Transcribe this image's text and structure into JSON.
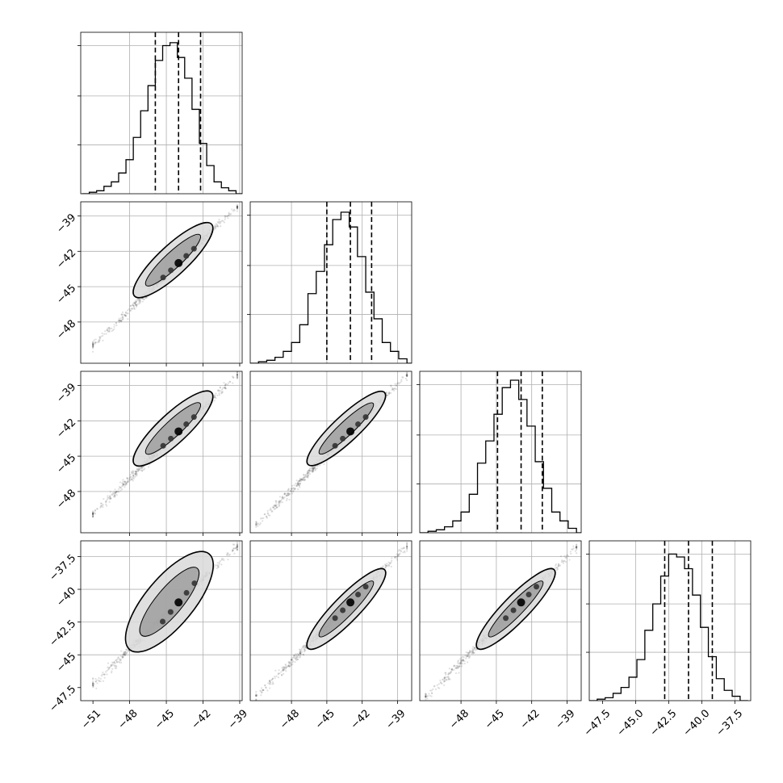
{
  "figure": {
    "kind": "corner plot"
  },
  "colors": {
    "line": "#000000",
    "grid": "#b0b0b0",
    "spine": "#000000",
    "scatter": "#000000"
  },
  "chart_data": [
    {
      "type": "histogram",
      "panel": "hist-0",
      "xlim": [
        -52,
        -38.8
      ],
      "ylim": [
        0,
        1.09
      ],
      "bins": [
        -51.9,
        -51.3,
        -50.7,
        -50.1,
        -49.5,
        -48.9,
        -48.3,
        -47.7,
        -47.1,
        -46.5,
        -45.9,
        -45.3,
        -44.7,
        -44.1,
        -43.5,
        -42.9,
        -42.3,
        -41.7,
        -41.1,
        -40.5,
        -39.9,
        -39.3,
        -38.7
      ],
      "counts": [
        0.0,
        0.01,
        0.02,
        0.05,
        0.08,
        0.14,
        0.23,
        0.38,
        0.56,
        0.73,
        0.9,
        1.0,
        1.02,
        0.92,
        0.78,
        0.57,
        0.34,
        0.19,
        0.08,
        0.04,
        0.02,
        0.0
      ],
      "quantiles": [
        -45.9,
        -44.0,
        -42.2
      ],
      "gridlines": [
        -48,
        -45,
        -42,
        -39
      ],
      "xticks": [
        -51,
        -48,
        -45,
        -42,
        -39
      ]
    },
    {
      "type": "histogram",
      "panel": "hist-1",
      "xlim": [
        -51.5,
        -37.8
      ],
      "ylim": [
        0,
        1.09
      ],
      "bins": [
        -51.5,
        -50.8,
        -50.1,
        -49.4,
        -48.7,
        -48.0,
        -47.3,
        -46.6,
        -45.9,
        -45.2,
        -44.5,
        -43.8,
        -43.1,
        -42.4,
        -41.7,
        -41.0,
        -40.3,
        -39.6,
        -38.9,
        -38.2,
        -37.5
      ],
      "counts": [
        0.0,
        0.01,
        0.02,
        0.04,
        0.08,
        0.14,
        0.26,
        0.47,
        0.62,
        0.8,
        0.97,
        1.02,
        0.92,
        0.72,
        0.48,
        0.3,
        0.14,
        0.08,
        0.03,
        0.0
      ],
      "quantiles": [
        -45.0,
        -43.0,
        -41.2
      ],
      "gridlines": [
        -48,
        -45,
        -42,
        -39
      ],
      "xticks": [
        -48,
        -45,
        -42,
        -39
      ]
    },
    {
      "type": "histogram",
      "panel": "hist-2",
      "xlim": [
        -51.5,
        -37.8
      ],
      "ylim": [
        0,
        1.09
      ],
      "bins": [
        -51.5,
        -50.8,
        -50.1,
        -49.4,
        -48.7,
        -48.0,
        -47.3,
        -46.6,
        -45.9,
        -45.2,
        -44.5,
        -43.8,
        -43.1,
        -42.4,
        -41.7,
        -41.0,
        -40.3,
        -39.6,
        -38.9,
        -38.2,
        -37.5
      ],
      "counts": [
        0.0,
        0.01,
        0.02,
        0.04,
        0.08,
        0.14,
        0.26,
        0.47,
        0.62,
        0.8,
        0.98,
        1.03,
        0.9,
        0.72,
        0.48,
        0.3,
        0.14,
        0.08,
        0.03,
        0.0
      ],
      "quantiles": [
        -44.9,
        -42.9,
        -41.1
      ],
      "gridlines": [
        -48,
        -45,
        -42,
        -39
      ],
      "xticks": [
        -48,
        -45,
        -42,
        -39
      ]
    },
    {
      "type": "histogram",
      "panel": "hist-3",
      "xlim": [
        -48.5,
        -36.3
      ],
      "ylim": [
        0,
        1.09
      ],
      "bins": [
        -48.5,
        -47.9,
        -47.3,
        -46.7,
        -46.1,
        -45.5,
        -44.9,
        -44.3,
        -43.7,
        -43.1,
        -42.5,
        -41.9,
        -41.3,
        -40.7,
        -40.1,
        -39.5,
        -38.9,
        -38.3,
        -37.7,
        -37.1,
        -36.5
      ],
      "counts": [
        0.0,
        0.01,
        0.02,
        0.05,
        0.09,
        0.16,
        0.28,
        0.48,
        0.66,
        0.85,
        1.0,
        0.98,
        0.9,
        0.72,
        0.5,
        0.3,
        0.15,
        0.07,
        0.03,
        0.0
      ],
      "quantiles": [
        -42.8,
        -41.0,
        -39.2
      ],
      "gridlines": [
        -45,
        -42.5,
        -40,
        -37.5
      ],
      "xticks": [
        -47.5,
        -45.0,
        -42.5,
        -40.0,
        -37.5
      ]
    },
    {
      "type": "scatter",
      "panel": "scatter-1-0",
      "xlim": [
        -52,
        -38.8
      ],
      "ylim": [
        -51.5,
        -37.8
      ],
      "samples": {
        "x_start": -51.0,
        "x_end": -39.2,
        "slope": 1.0,
        "intercept": 1.0,
        "count": 600
      },
      "contour_main_axis": [
        [
          -47.6,
          -45.8
        ],
        [
          -41.3,
          -39.7
        ]
      ],
      "contour_width": 0.55,
      "density_peak": [
        -44.0,
        -43.0
      ],
      "yticks": [
        -39,
        -42,
        -45,
        -48
      ],
      "gridlines_x": [
        -48,
        -45,
        -42,
        -39
      ],
      "gridlines_y": [
        -48,
        -45,
        -42,
        -39
      ]
    },
    {
      "type": "scatter",
      "panel": "scatter-2-0",
      "xlim": [
        -52,
        -38.8
      ],
      "ylim": [
        -51.5,
        -37.8
      ],
      "samples": {
        "x_start": -51.0,
        "x_end": -39.2,
        "slope": 1.0,
        "intercept": 1.1,
        "count": 600
      },
      "contour_main_axis": [
        [
          -47.6,
          -45.7
        ],
        [
          -41.3,
          -39.6
        ]
      ],
      "contour_width": 0.55,
      "density_peak": [
        -44.0,
        -42.9
      ],
      "yticks": [
        -39,
        -42,
        -45,
        -48
      ],
      "gridlines_x": [
        -48,
        -45,
        -42,
        -39
      ],
      "gridlines_y": [
        -48,
        -45,
        -42,
        -39
      ]
    },
    {
      "type": "scatter",
      "panel": "scatter-2-1",
      "xlim": [
        -51.5,
        -37.8
      ],
      "ylim": [
        -51.5,
        -37.8
      ],
      "samples": {
        "x_start": -51.0,
        "x_end": -38.2,
        "slope": 1.0,
        "intercept": 0.1,
        "count": 600
      },
      "contour_main_axis": [
        [
          -46.6,
          -45.7
        ],
        [
          -40.1,
          -39.6
        ]
      ],
      "contour_width": 0.5,
      "density_peak": [
        -43.0,
        -42.9
      ],
      "gridlines_x": [
        -48,
        -45,
        -42,
        -39
      ],
      "gridlines_y": [
        -48,
        -45,
        -42,
        -39
      ]
    },
    {
      "type": "scatter",
      "panel": "scatter-3-0",
      "xlim": [
        -52,
        -38.8
      ],
      "ylim": [
        -48.5,
        -36.3
      ],
      "samples": {
        "x_start": -51.0,
        "x_end": -39.2,
        "slope": 0.9,
        "intercept": -1.4,
        "count": 600
      },
      "contour_main_axis": [
        [
          -48.0,
          -44.6
        ],
        [
          -41.5,
          -37.3
        ]
      ],
      "contour_width": 0.9,
      "density_peak": [
        -44.0,
        -41.0
      ],
      "yticks": [
        -37.5,
        -40.0,
        -42.5,
        -45.0,
        -47.5
      ],
      "xticks": [
        -51,
        -48,
        -45,
        -42,
        -39
      ],
      "gridlines_x": [
        -48,
        -45,
        -42,
        -39
      ],
      "gridlines_y": [
        -45,
        -42.5,
        -40,
        -37.5
      ]
    },
    {
      "type": "scatter",
      "panel": "scatter-3-1",
      "xlim": [
        -51.5,
        -37.8
      ],
      "ylim": [
        -48.5,
        -36.3
      ],
      "samples": {
        "x_start": -51.0,
        "x_end": -38.2,
        "slope": 0.9,
        "intercept": -2.3,
        "count": 600
      },
      "contour_main_axis": [
        [
          -46.6,
          -44.5
        ],
        [
          -40.1,
          -38.5
        ]
      ],
      "contour_width": 0.5,
      "density_peak": [
        -43.0,
        -41.0
      ],
      "xticks": [
        -48,
        -45,
        -42,
        -39
      ],
      "gridlines_x": [
        -48,
        -45,
        -42,
        -39
      ],
      "gridlines_y": [
        -45,
        -42.5,
        -40,
        -37.5
      ]
    },
    {
      "type": "scatter",
      "panel": "scatter-3-2",
      "xlim": [
        -51.5,
        -37.8
      ],
      "ylim": [
        -48.5,
        -36.3
      ],
      "samples": {
        "x_start": -51.0,
        "x_end": -38.2,
        "slope": 0.9,
        "intercept": -2.4,
        "count": 600
      },
      "contour_main_axis": [
        [
          -46.6,
          -44.5
        ],
        [
          -40.1,
          -38.5
        ]
      ],
      "contour_width": 0.5,
      "density_peak": [
        -42.9,
        -41.0
      ],
      "xticks": [
        -48,
        -45,
        -42,
        -39
      ],
      "gridlines_x": [
        -48,
        -45,
        -42,
        -39
      ],
      "gridlines_y": [
        -45,
        -42.5,
        -40,
        -37.5
      ]
    }
  ]
}
